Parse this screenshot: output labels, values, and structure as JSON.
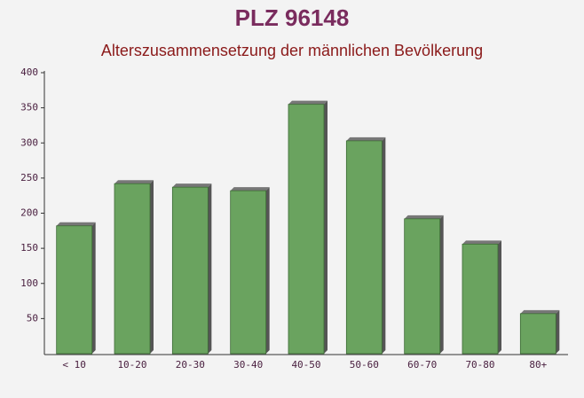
{
  "chart_data": {
    "type": "bar",
    "title": "PLZ 96148",
    "subtitle": "Alterszusammensetzung der männlichen Bevölkerung",
    "categories": [
      "< 10",
      "10-20",
      "20-30",
      "30-40",
      "40-50",
      "50-60",
      "60-70",
      "70-80",
      "80+"
    ],
    "values": [
      182,
      242,
      237,
      232,
      355,
      303,
      192,
      156,
      57
    ],
    "color": "#6aa35f",
    "ylim": [
      0,
      400
    ],
    "yticks": [
      50,
      100,
      150,
      200,
      250,
      300,
      350,
      400
    ],
    "grid": false
  }
}
